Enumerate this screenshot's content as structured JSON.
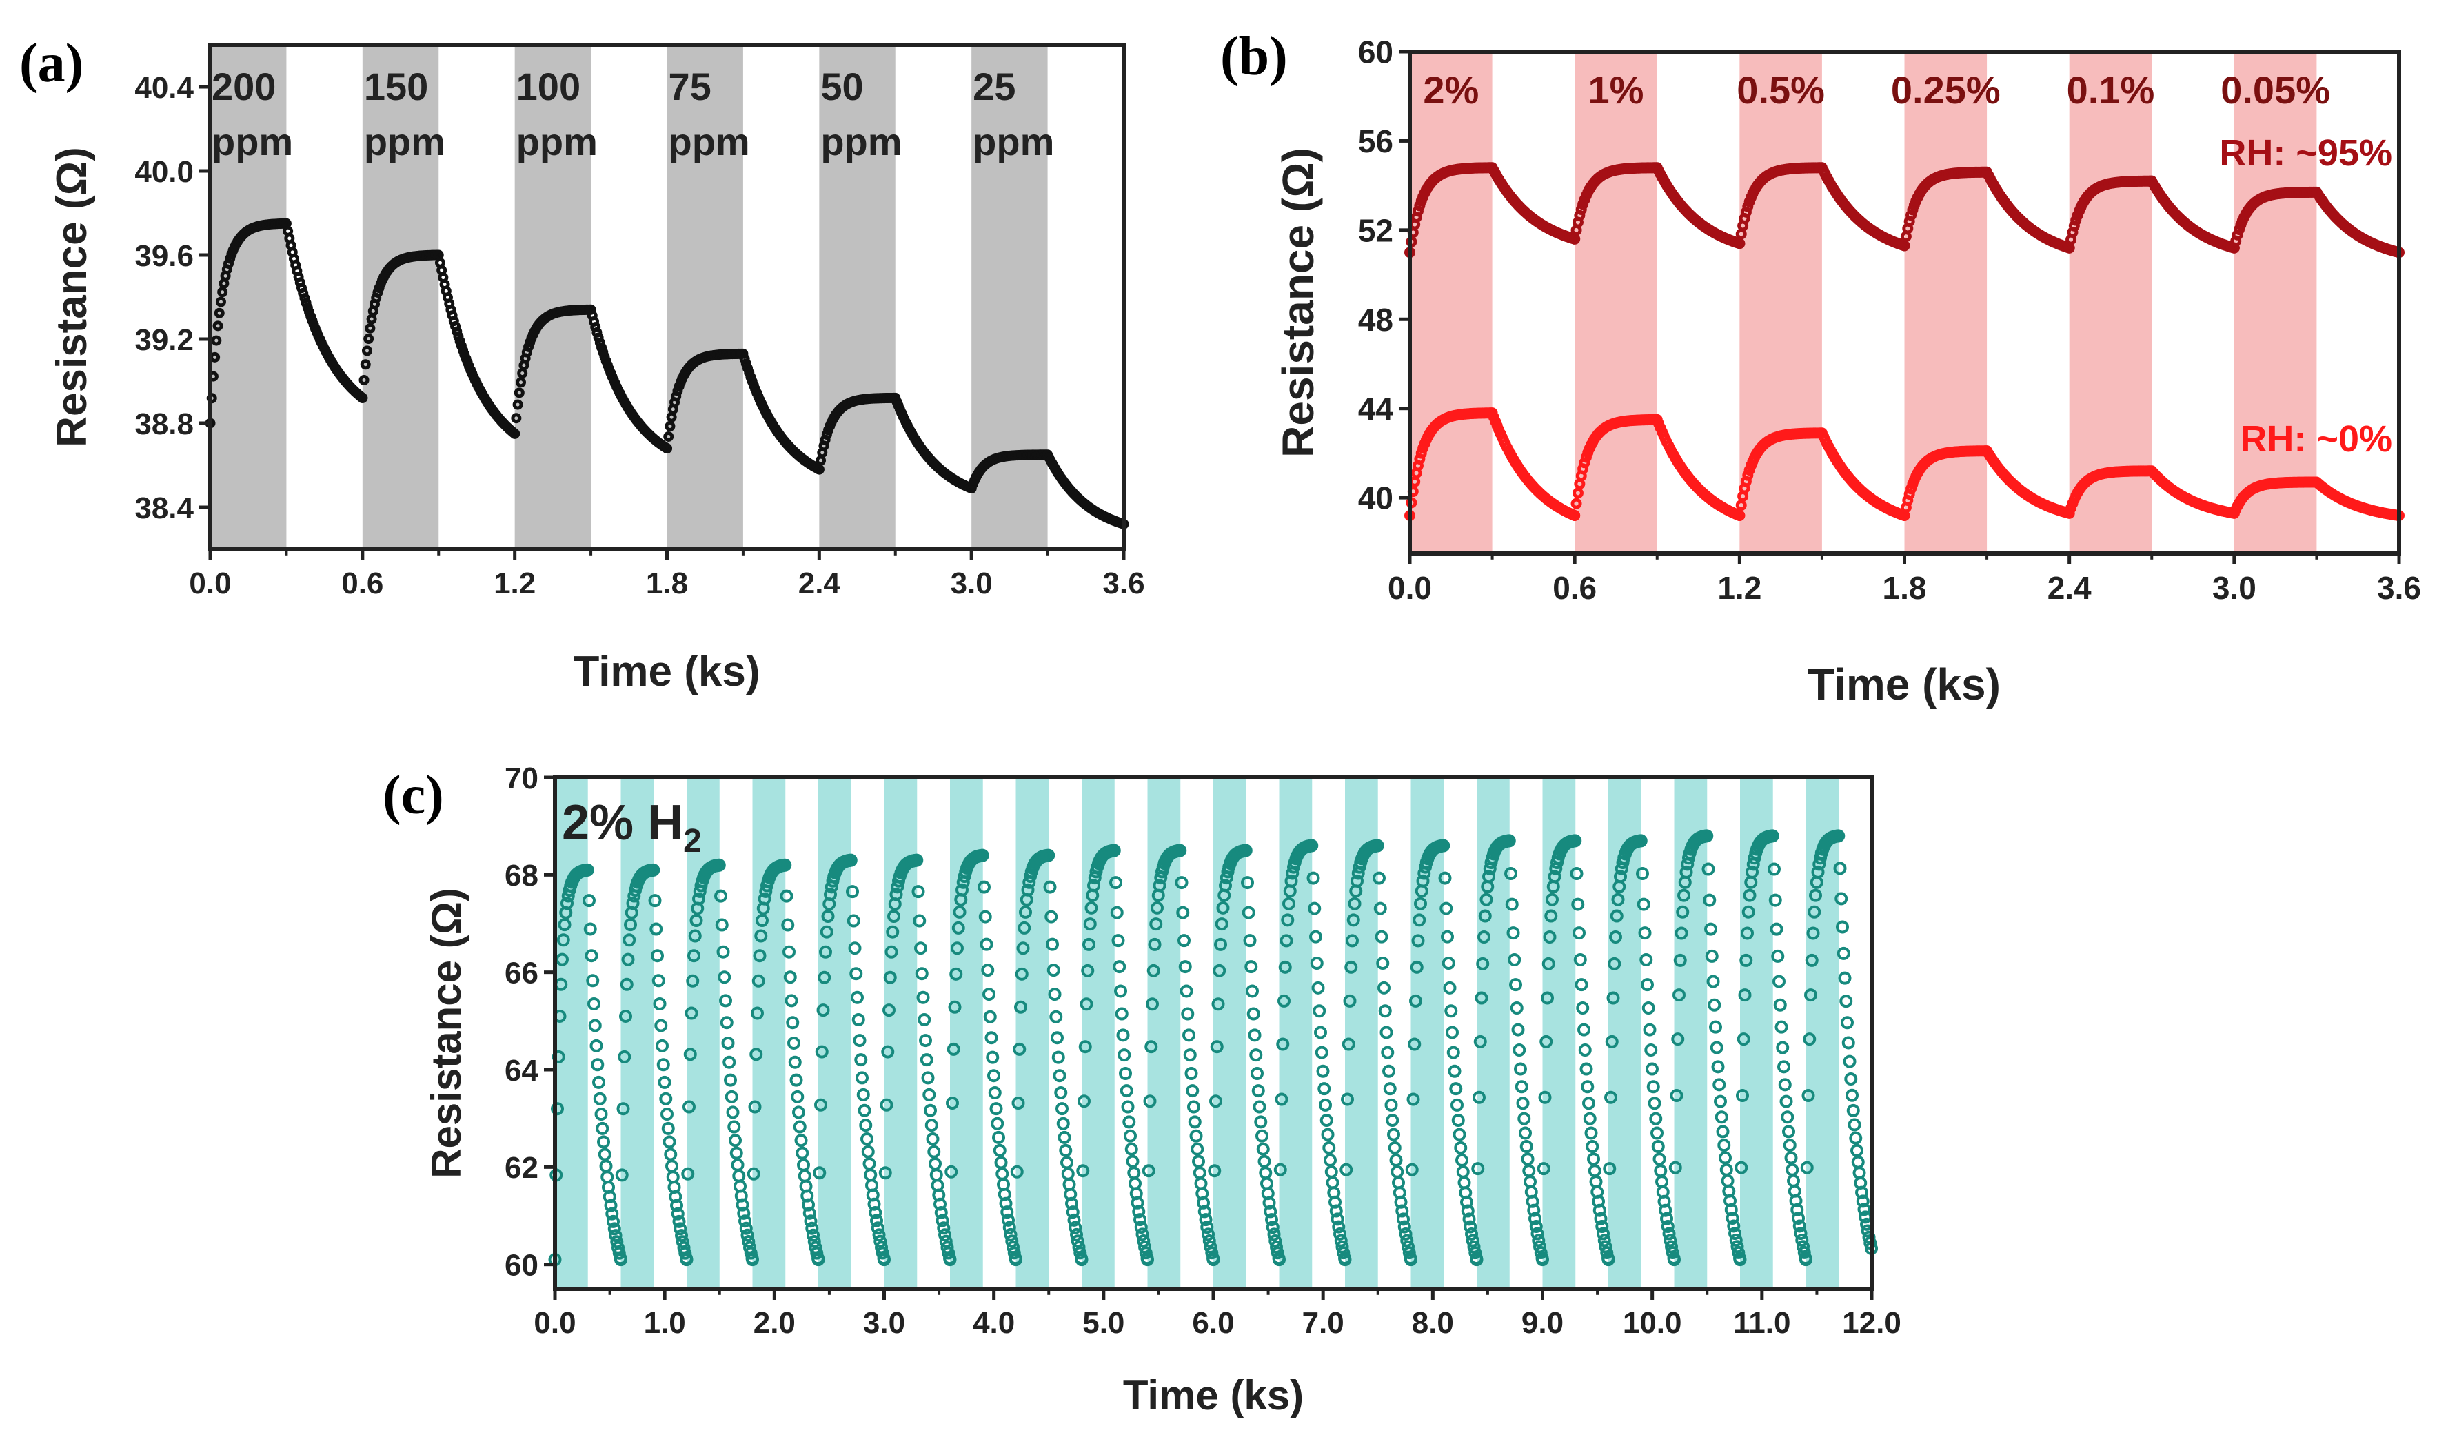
{
  "chart_data": [
    {
      "panel": "(a)",
      "type": "line",
      "xlabel": "Time (ks)",
      "ylabel": "Resistance (Ω)",
      "xlim": [
        0,
        3.6
      ],
      "ylim": [
        38.2,
        40.6
      ],
      "xticks": [
        "0.0",
        "0.6",
        "1.2",
        "1.8",
        "2.4",
        "3.0",
        "3.6"
      ],
      "yticks": [
        "38.4",
        "38.8",
        "39.2",
        "39.6",
        "40.0",
        "40.4"
      ],
      "ytick_values": [
        38.4,
        38.8,
        39.2,
        39.6,
        40.0,
        40.4
      ],
      "band_color": "#c0c0c0",
      "marker_color": "#111111",
      "exposure_windows": [
        [
          0,
          0.3
        ],
        [
          0.6,
          0.9
        ],
        [
          1.2,
          1.5
        ],
        [
          1.8,
          2.1
        ],
        [
          2.4,
          2.7
        ],
        [
          3.0,
          3.3
        ]
      ],
      "concentration_labels": [
        [
          "200",
          "ppm"
        ],
        [
          "150",
          "ppm"
        ],
        [
          "100",
          "ppm"
        ],
        [
          "75",
          "ppm"
        ],
        [
          "50",
          "ppm"
        ],
        [
          "25",
          "ppm"
        ]
      ],
      "cycles": [
        {
          "start": 38.8,
          "peak": 39.75
        },
        {
          "start": 38.92,
          "peak": 39.6
        },
        {
          "start": 38.75,
          "peak": 39.34
        },
        {
          "start": 38.68,
          "peak": 39.13
        },
        {
          "start": 38.58,
          "peak": 38.92
        },
        {
          "start": 38.49,
          "peak": 38.65
        }
      ],
      "end_value": 38.32
    },
    {
      "panel": "(b)",
      "type": "line",
      "xlabel": "Time (ks)",
      "ylabel": "Resistance (Ω)",
      "xlim": [
        0,
        3.6
      ],
      "ylim": [
        37.5,
        60
      ],
      "xticks": [
        "0.0",
        "0.6",
        "1.2",
        "1.8",
        "2.4",
        "3.0",
        "3.6"
      ],
      "yticks": [
        "40",
        "44",
        "48",
        "52",
        "56",
        "60"
      ],
      "ytick_values": [
        40,
        44,
        48,
        52,
        56,
        60
      ],
      "band_color": "#f7bcbc",
      "exposure_windows": [
        [
          0,
          0.3
        ],
        [
          0.6,
          0.9
        ],
        [
          1.2,
          1.5
        ],
        [
          1.8,
          2.1
        ],
        [
          2.4,
          2.7
        ],
        [
          3.0,
          3.3
        ]
      ],
      "concentration_labels": [
        "2%",
        "1%",
        "0.5%",
        "0.25%",
        "0.1%",
        "0.05%"
      ],
      "label_color": "#7a1010",
      "series": [
        {
          "name": "RH: ~95%",
          "color": "#a50f15",
          "cycles": [
            {
              "start": 51.0,
              "peak": 54.8
            },
            {
              "start": 51.6,
              "peak": 54.8
            },
            {
              "start": 51.4,
              "peak": 54.8
            },
            {
              "start": 51.3,
              "peak": 54.6
            },
            {
              "start": 51.2,
              "peak": 54.2
            },
            {
              "start": 51.2,
              "peak": 53.7
            }
          ],
          "end_value": 51.0
        },
        {
          "name": "RH: ~0%",
          "color": "#ff1a1a",
          "cycles": [
            {
              "start": 39.2,
              "peak": 43.8
            },
            {
              "start": 39.2,
              "peak": 43.5
            },
            {
              "start": 39.2,
              "peak": 42.9
            },
            {
              "start": 39.2,
              "peak": 42.1
            },
            {
              "start": 39.3,
              "peak": 41.2
            },
            {
              "start": 39.3,
              "peak": 40.7
            }
          ],
          "end_value": 39.2
        }
      ]
    },
    {
      "panel": "(c)",
      "type": "scatter",
      "title_annotation": "2% H",
      "title_subscript": "2",
      "xlabel": "Time (ks)",
      "ylabel": "Resistance (Ω)",
      "xlim": [
        0,
        12.0
      ],
      "ylim": [
        59.5,
        70
      ],
      "xticks": [
        "0.0",
        "1.0",
        "2.0",
        "3.0",
        "4.0",
        "5.0",
        "6.0",
        "7.0",
        "8.0",
        "9.0",
        "10.0",
        "11.0",
        "12.0"
      ],
      "yticks": [
        "60",
        "62",
        "64",
        "66",
        "68",
        "70"
      ],
      "ytick_values": [
        60,
        62,
        64,
        66,
        68,
        70
      ],
      "band_color": "#a8e3e0",
      "marker_color": "#178a7e",
      "cycle_period": 0.6,
      "exposure_duration": 0.3,
      "cycle_count": 20,
      "base_value": 60.1,
      "peaks": [
        68.1,
        68.1,
        68.2,
        68.2,
        68.3,
        68.3,
        68.4,
        68.4,
        68.5,
        68.5,
        68.5,
        68.6,
        68.6,
        68.6,
        68.7,
        68.7,
        68.7,
        68.8,
        68.8,
        68.8
      ],
      "end_value": 60.3
    }
  ]
}
